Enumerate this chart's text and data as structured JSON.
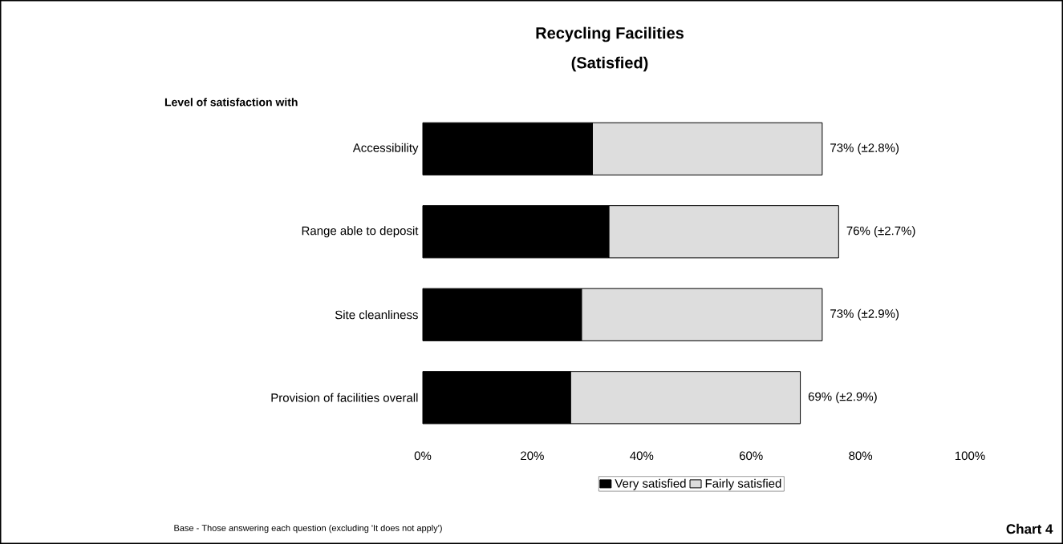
{
  "chart_data": {
    "type": "bar",
    "orientation": "horizontal",
    "stacked": true,
    "title": "Recycling Facilities",
    "subtitle": "(Satisfied)",
    "ylabel": "Level of satisfaction with",
    "categories": [
      "Accessibility",
      "Range able to deposit",
      "Site cleanliness",
      "Provision of facilities overall"
    ],
    "series": [
      {
        "name": "Very satisfied",
        "color": "#000000",
        "values": [
          31,
          34,
          29,
          27
        ]
      },
      {
        "name": "Fairly satisfied",
        "color": "#dddddd",
        "values": [
          42,
          42,
          44,
          42
        ]
      }
    ],
    "totals": [
      "73% (±2.8%)",
      "76%  (±2.7%)",
      "73%  (±2.9%)",
      "69%   (±2.9%)"
    ],
    "xlim": [
      0,
      100
    ],
    "xticks": [
      {
        "value": 0,
        "label": "0%"
      },
      {
        "value": 20,
        "label": "20%"
      },
      {
        "value": 40,
        "label": "40%"
      },
      {
        "value": 60,
        "label": "60%"
      },
      {
        "value": 80,
        "label": "80%"
      },
      {
        "value": 100,
        "label": "100%"
      }
    ],
    "grid": false,
    "legend": "bottom",
    "annotations": [
      "Base - Those answering each question (excluding 'It does not apply')",
      "Chart 4"
    ]
  }
}
